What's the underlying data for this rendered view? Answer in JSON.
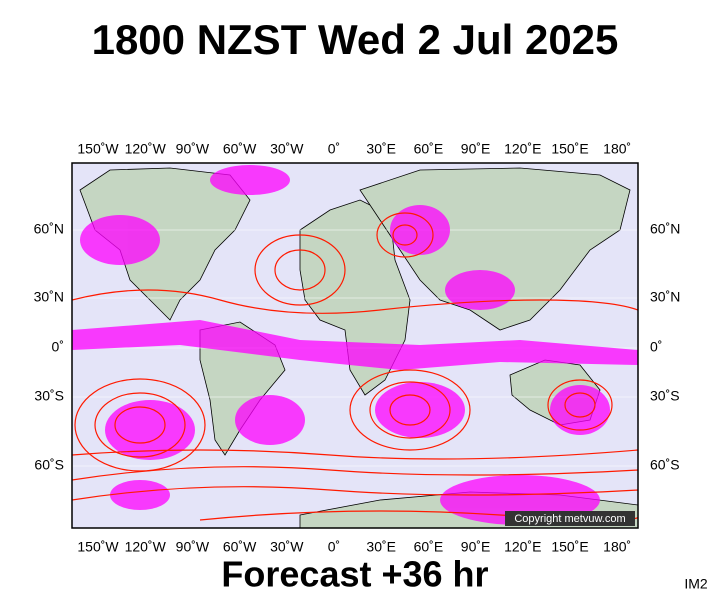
{
  "title": "1800 NZST Wed 2 Jul 2025",
  "map": {
    "lon_labels": [
      "150˚W",
      "120˚W",
      "90˚W",
      "60˚W",
      "30˚W",
      "0˚",
      "30˚E",
      "60˚E",
      "90˚E",
      "120˚E",
      "150˚E",
      "180˚"
    ],
    "lat_labels": [
      "60˚N",
      "30˚N",
      "0˚",
      "30˚S",
      "60˚S"
    ],
    "copyright": "Copyright metvuw.com"
  },
  "footer": {
    "forecast": "Forecast +36 hr",
    "id": "IM2"
  }
}
